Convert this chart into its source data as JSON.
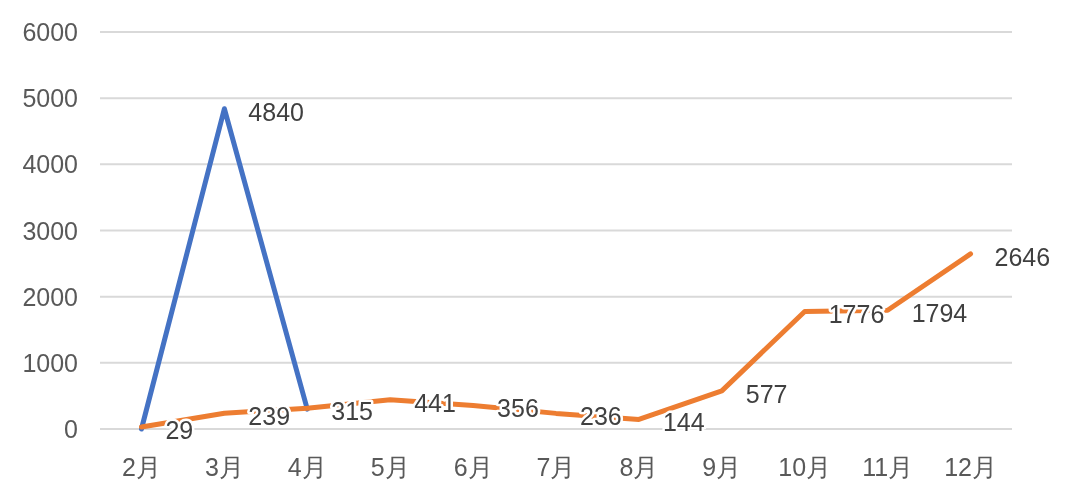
{
  "chart_data": {
    "type": "line",
    "categories": [
      "2月",
      "3月",
      "4月",
      "5月",
      "6月",
      "7月",
      "8月",
      "9月",
      "10月",
      "11月",
      "12月"
    ],
    "series": [
      {
        "color": "#4472c4",
        "values": [
          0,
          4840,
          300,
          null,
          null,
          null,
          null,
          null,
          null,
          null,
          null
        ],
        "value_labels": [
          null,
          "4840",
          null,
          null,
          null,
          null,
          null,
          null,
          null,
          null,
          null
        ]
      },
      {
        "color": "#ed7d31",
        "values": [
          29,
          239,
          315,
          441,
          356,
          236,
          144,
          577,
          1776,
          1794,
          2646
        ],
        "value_labels": [
          "29",
          "239",
          "315",
          "441",
          "356",
          "236",
          "144",
          "577",
          "1776",
          "1794",
          "2646"
        ]
      }
    ],
    "ylim": [
      0,
      6000
    ],
    "yticks": [
      0,
      1000,
      2000,
      3000,
      4000,
      5000,
      6000
    ],
    "grid": "y",
    "marker": "none",
    "line_style": "solid"
  }
}
